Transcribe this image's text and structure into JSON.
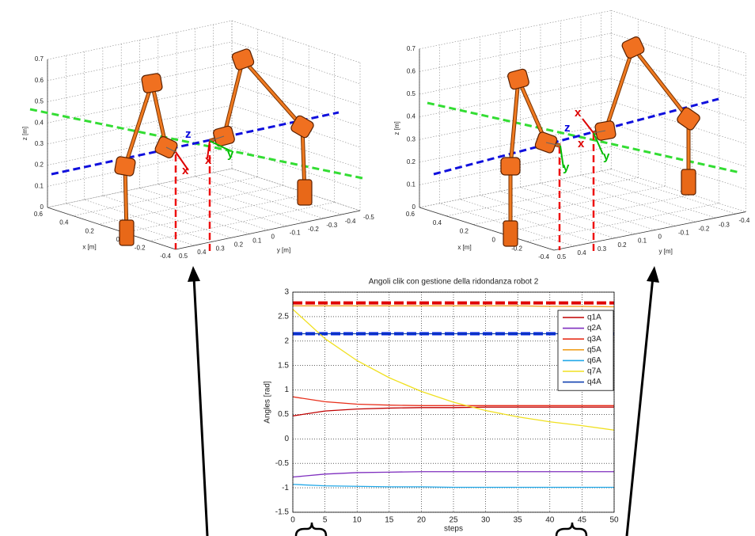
{
  "chart_data": [
    {
      "type": "3d",
      "xlabel": "x [m]",
      "ylabel": "y [m]",
      "zlabel": "z [m]",
      "xlim": [
        -0.4,
        0.6
      ],
      "ylim": [
        -0.5,
        0.5
      ],
      "zlim": [
        0,
        0.7
      ],
      "xticks": [
        -0.4,
        -0.2,
        0,
        0.2,
        0.4,
        0.6
      ],
      "yticks": [
        -0.5,
        -0.4,
        -0.3,
        -0.2,
        -0.1,
        0,
        0.1,
        0.2,
        0.3,
        0.4,
        0.5
      ],
      "zticks": [
        0,
        0.1,
        0.2,
        0.3,
        0.4,
        0.5,
        0.6,
        0.7
      ],
      "grid": true,
      "annotations": [
        "z",
        "x",
        "x",
        "y"
      ]
    },
    {
      "type": "3d",
      "xlabel": "x [m]",
      "ylabel": "y [m]",
      "zlabel": "z [m]",
      "xlim": [
        -0.4,
        0.6
      ],
      "ylim": [
        -0.45,
        0.5
      ],
      "zlim": [
        0,
        0.7
      ],
      "xticks": [
        -0.4,
        -0.2,
        0,
        0.2,
        0.4,
        0.6
      ],
      "yticks": [
        -0.4,
        -0.3,
        -0.2,
        -0.1,
        0,
        0.1,
        0.2,
        0.3,
        0.4,
        0.5
      ],
      "zticks": [
        0,
        0.1,
        0.2,
        0.3,
        0.4,
        0.5,
        0.6,
        0.7
      ],
      "grid": true,
      "annotations": [
        "x",
        "z",
        "x",
        "y",
        "y"
      ]
    },
    {
      "type": "line",
      "title": "Angoli clik con gestione della ridondanza robot 2",
      "xlabel": "steps",
      "ylabel": "Angles [rad]",
      "x": [
        0,
        5,
        10,
        15,
        20,
        25,
        30,
        35,
        40,
        45,
        50
      ],
      "xlim": [
        0,
        50
      ],
      "ylim": [
        -1.5,
        3
      ],
      "xticks": [
        0,
        5,
        10,
        15,
        20,
        25,
        30,
        35,
        40,
        45,
        50
      ],
      "yticks": [
        -1.5,
        -1,
        -0.5,
        0,
        0.5,
        1,
        1.5,
        2,
        2.5,
        3
      ],
      "grid": true,
      "legend": "upper right",
      "series": [
        {
          "name": "q1A",
          "color": "#c00000",
          "values": [
            0.47,
            0.57,
            0.61,
            0.63,
            0.64,
            0.64,
            0.65,
            0.65,
            0.65,
            0.65,
            0.65
          ]
        },
        {
          "name": "q2A",
          "color": "#7f2fbf",
          "values": [
            -0.78,
            -0.72,
            -0.69,
            -0.68,
            -0.67,
            -0.67,
            -0.67,
            -0.67,
            -0.67,
            -0.67,
            -0.67
          ]
        },
        {
          "name": "q3A",
          "color": "#e8301c",
          "values": [
            0.86,
            0.76,
            0.71,
            0.69,
            0.68,
            0.68,
            0.68,
            0.68,
            0.68,
            0.68,
            0.68
          ]
        },
        {
          "name": "q5A",
          "color": "#f0a020",
          "values": [
            2.72,
            2.72,
            2.72,
            2.72,
            2.72,
            2.72,
            2.72,
            2.72,
            2.71,
            2.71,
            2.7
          ]
        },
        {
          "name": "q6A",
          "color": "#22a8e8",
          "values": [
            -0.93,
            -0.96,
            -0.97,
            -0.98,
            -0.98,
            -0.99,
            -0.99,
            -0.99,
            -0.99,
            -0.99,
            -0.99
          ]
        },
        {
          "name": "q7A",
          "color": "#f0e020",
          "values": [
            2.65,
            2.05,
            1.6,
            1.25,
            0.97,
            0.75,
            0.58,
            0.45,
            0.35,
            0.27,
            0.18
          ]
        },
        {
          "name": "q4A",
          "color": "#1040b0",
          "values": [
            2.15,
            2.15,
            2.15,
            2.15,
            2.15,
            2.15,
            2.15,
            2.15,
            2.15,
            2.15,
            2.15
          ]
        }
      ],
      "hlines": [
        {
          "value": 2.78,
          "color": "#e00000"
        },
        {
          "value": 2.15,
          "color": "#0020e0"
        }
      ]
    }
  ]
}
